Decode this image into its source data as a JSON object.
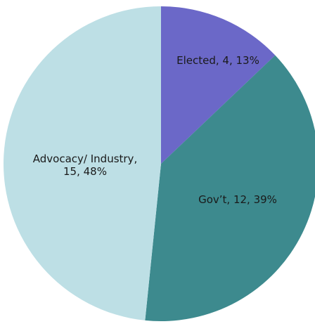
{
  "chart_data": {
    "type": "pie",
    "title": "",
    "start_angle_deg": 0,
    "direction": "clockwise",
    "slices": [
      {
        "category": "Elected",
        "value": 4,
        "percent": 13,
        "color": "#6B68C8",
        "label_lines": [
          "Elected, 4, 13%"
        ]
      },
      {
        "category": "Gov't",
        "value": 12,
        "percent": 39,
        "color": "#3D8A8E",
        "label_lines": [
          "Gov’t, 12, 39%"
        ]
      },
      {
        "category": "Advocacy/ Industry",
        "value": 15,
        "percent": 48,
        "color": "#BDDFE5",
        "label_lines": [
          "Advocacy/ Industry,",
          "15, 48%"
        ]
      }
    ]
  }
}
